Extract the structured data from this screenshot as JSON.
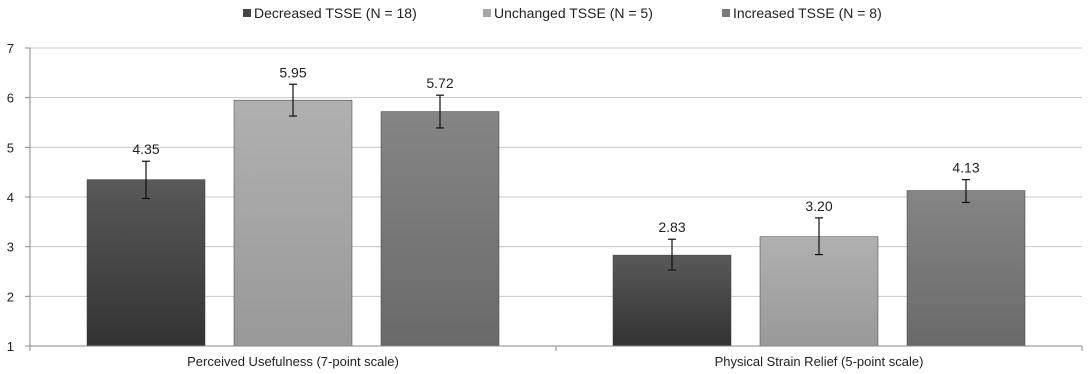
{
  "chart_data": {
    "type": "bar",
    "categories": [
      "Perceived Usefulness (7-point scale)",
      "Physical Strain Relief (5-point scale)"
    ],
    "series": [
      {
        "name": "Decreased TSSE (N = 18)",
        "values": [
          4.35,
          2.83
        ],
        "value_labels": [
          "4.35",
          "2.83"
        ],
        "error_low": [
          3.97,
          2.53
        ],
        "error_high": [
          4.72,
          3.15
        ],
        "color": "#454545"
      },
      {
        "name": "Unchanged TSSE (N = 5)",
        "values": [
          5.95,
          3.2
        ],
        "value_labels": [
          "5.95",
          "3.20"
        ],
        "error_low": [
          5.63,
          2.84
        ],
        "error_high": [
          6.27,
          3.58
        ],
        "color": "#a6a6a6"
      },
      {
        "name": "Increased TSSE (N = 8)",
        "values": [
          5.72,
          4.13
        ],
        "value_labels": [
          "5.72",
          "4.13"
        ],
        "error_low": [
          5.39,
          3.89
        ],
        "error_high": [
          6.05,
          4.35
        ],
        "color": "#7a7a7a"
      }
    ],
    "y_ticks": [
      "1",
      "2",
      "3",
      "4",
      "5",
      "6",
      "7"
    ],
    "ylim": [
      1,
      7
    ],
    "grid": true,
    "legend_position": "top"
  }
}
